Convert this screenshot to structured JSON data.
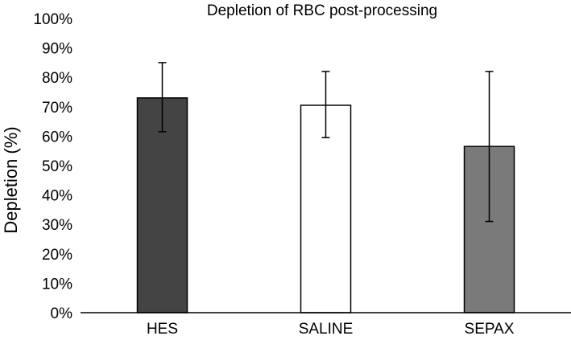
{
  "chart_data": {
    "type": "bar",
    "title": "Depletion of RBC post-processing",
    "xlabel": "",
    "ylabel": "Depletion (%)",
    "categories": [
      "HES",
      "SALINE",
      "SEPAX"
    ],
    "values": [
      0.73,
      0.705,
      0.565
    ],
    "error_low": [
      0.615,
      0.595,
      0.31
    ],
    "error_high": [
      0.85,
      0.82,
      0.82
    ],
    "ylim": [
      0,
      1
    ],
    "yticks": [
      {
        "value": 0,
        "label": "0%"
      },
      {
        "value": 0.1,
        "label": "10%"
      },
      {
        "value": 0.2,
        "label": "20%"
      },
      {
        "value": 0.3,
        "label": "30%"
      },
      {
        "value": 0.4,
        "label": "40%"
      },
      {
        "value": 0.5,
        "label": "50%"
      },
      {
        "value": 0.6,
        "label": "60%"
      },
      {
        "value": 0.7,
        "label": "70%"
      },
      {
        "value": 0.8,
        "label": "80%"
      },
      {
        "value": 0.9,
        "label": "90%"
      },
      {
        "value": 1,
        "label": "100%"
      }
    ],
    "grid": false,
    "legend": "none",
    "bar_fill_colors": [
      "#444444",
      "#ffffff",
      "#7a7a7a"
    ],
    "bar_stroke_color": "#000000",
    "axis_color": "#000000"
  }
}
